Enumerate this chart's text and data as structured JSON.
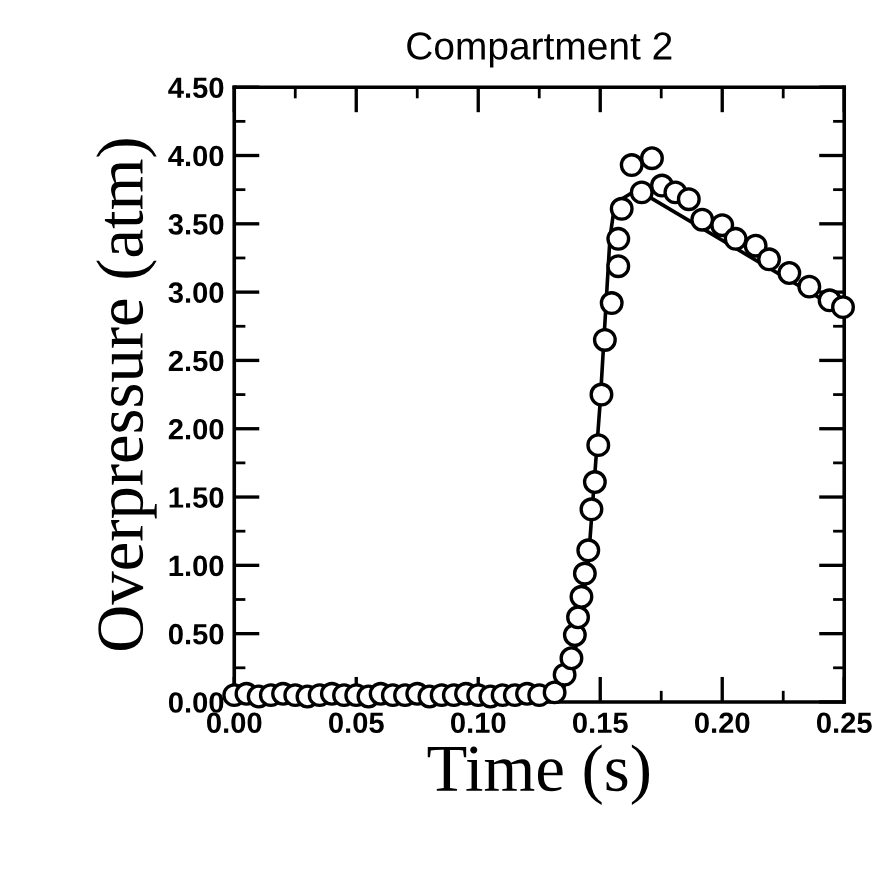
{
  "chart_data": {
    "type": "line",
    "title": "Compartment 2",
    "xlabel": "Time (s)",
    "ylabel": "Overpressure (atm)",
    "xlim": [
      0,
      0.25
    ],
    "ylim": [
      0,
      4.5
    ],
    "xticks": [
      {
        "value": 0,
        "label": "0.00"
      },
      {
        "value": 0.05,
        "label": "0.05"
      },
      {
        "value": 0.1,
        "label": "0.10"
      },
      {
        "value": 0.15,
        "label": "0.15"
      },
      {
        "value": 0.2,
        "label": "0.20"
      },
      {
        "value": 0.25,
        "label": "0.25"
      }
    ],
    "yticks": [
      {
        "value": 0,
        "label": "0.00"
      },
      {
        "value": 0.5,
        "label": "0.50"
      },
      {
        "value": 1,
        "label": "1.00"
      },
      {
        "value": 1.5,
        "label": "1.50"
      },
      {
        "value": 2,
        "label": "2.00"
      },
      {
        "value": 2.5,
        "label": "2.50"
      },
      {
        "value": 3,
        "label": "3.00"
      },
      {
        "value": 3.5,
        "label": "3.50"
      },
      {
        "value": 4,
        "label": "4.00"
      },
      {
        "value": 4.5,
        "label": "4.50"
      }
    ],
    "grid": false,
    "legend": false,
    "series": [
      {
        "color": "#000000",
        "marker": "none",
        "line_style": "solid",
        "x": [
          0,
          0.13,
          0.135,
          0.14,
          0.145,
          0.15,
          0.154,
          0.156,
          0.165,
          0.25
        ],
        "values": [
          0.05,
          0.05,
          0.1,
          0.4,
          1.0,
          2.2,
          3.4,
          3.65,
          3.75,
          2.85
        ]
      },
      {
        "type": "scatter",
        "color": "#000000",
        "marker": "circle",
        "x": [
          0,
          0.005,
          0.01,
          0.015,
          0.02,
          0.025,
          0.03,
          0.035,
          0.04,
          0.045,
          0.05,
          0.055,
          0.06,
          0.065,
          0.07,
          0.075,
          0.08,
          0.085,
          0.09,
          0.095,
          0.1,
          0.105,
          0.11,
          0.115,
          0.12,
          0.125,
          0.1313,
          0.1354,
          0.1382,
          0.1396,
          0.1409,
          0.1423,
          0.1437,
          0.1451,
          0.1464,
          0.1478,
          0.1492,
          0.1505,
          0.1519,
          0.1547,
          0.1574,
          0.1574,
          0.1588,
          0.1629,
          0.167,
          0.1712,
          0.1753,
          0.1808,
          0.1863,
          0.1918,
          0.2,
          0.2055,
          0.2137,
          0.2192,
          0.2275,
          0.2357,
          0.244,
          0.2495
        ],
        "values": [
          0.05,
          0.06,
          0.04,
          0.05,
          0.06,
          0.05,
          0.04,
          0.05,
          0.06,
          0.05,
          0.05,
          0.04,
          0.06,
          0.05,
          0.05,
          0.06,
          0.04,
          0.05,
          0.05,
          0.06,
          0.05,
          0.04,
          0.05,
          0.05,
          0.06,
          0.05,
          0.07,
          0.2,
          0.32,
          0.49,
          0.62,
          0.77,
          0.94,
          1.11,
          1.41,
          1.61,
          1.88,
          2.25,
          2.65,
          2.92,
          3.19,
          3.39,
          3.61,
          3.93,
          3.73,
          3.98,
          3.78,
          3.73,
          3.68,
          3.53,
          3.49,
          3.39,
          3.34,
          3.24,
          3.14,
          3.04,
          2.94,
          2.89
        ]
      }
    ]
  }
}
